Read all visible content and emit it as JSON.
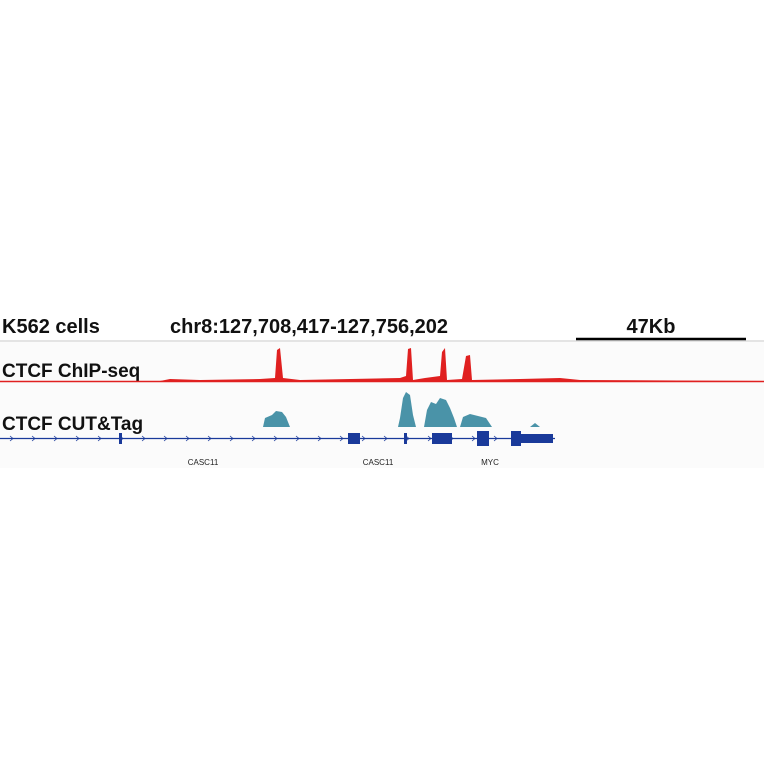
{
  "header": {
    "cell_line": "K562 cells",
    "locus": "chr8:127,708,417-127,756,202",
    "scale": "47Kb"
  },
  "tracks": [
    {
      "label": "CTCF ChIP-seq"
    },
    {
      "label": "CTCF CUT&Tag"
    }
  ],
  "genes": [
    {
      "label": "CASC11"
    },
    {
      "label": "CASC11"
    },
    {
      "label": "MYC"
    }
  ]
}
